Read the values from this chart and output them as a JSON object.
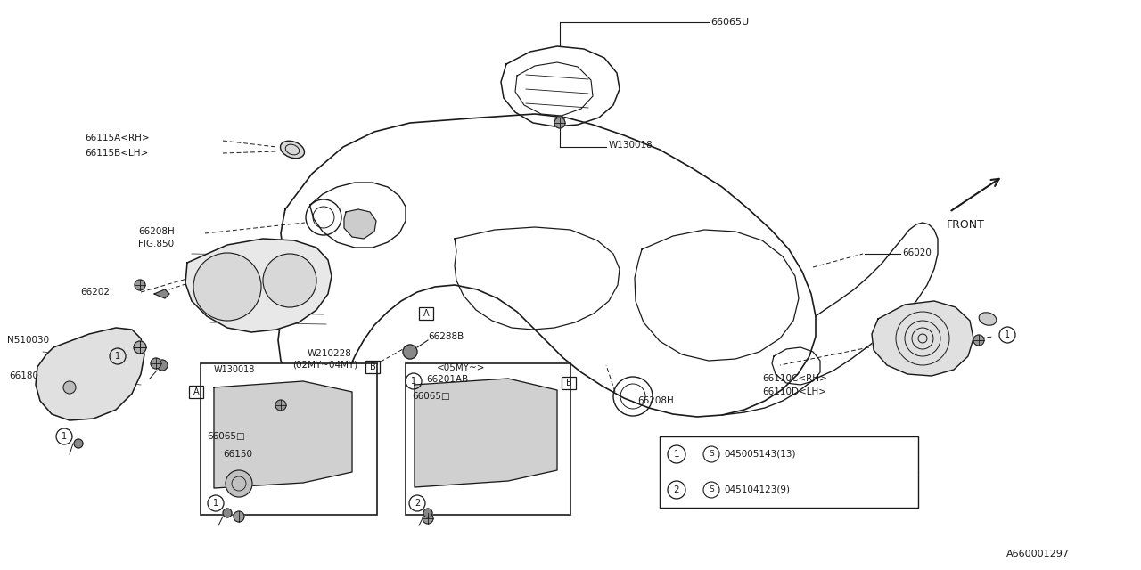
{
  "bg_color": "#ffffff",
  "line_color": "#1a1a1a",
  "diagram_code": "A660001297",
  "fig_w": 12.8,
  "fig_h": 6.4,
  "dpi": 100,
  "labels": {
    "66115A_RH": "66115A<RH>",
    "66115B_LH": "66115B<LH>",
    "66208H_top": "66208H",
    "FIG850": "FIG.850",
    "66202": "66202",
    "N510030": "N510030",
    "66180": "66180",
    "66065D_left": "66065□",
    "66150": "66150",
    "W130018_left": "W130018",
    "W210228": "W210228",
    "02MY_04MY": "(02MY~04MY)",
    "66288B": "66288B",
    "05MY": "<05MY~>",
    "66065D_right": "66065□",
    "66201AB": "66201AB",
    "66208H_bot": "66208H",
    "66065U": "66065U",
    "W130018_top": "W130018",
    "66020": "66020",
    "66110C_RH": "66110C<RH>",
    "66110D_LH": "66110D<LH>",
    "FRONT": "FRONT",
    "part1_num": "045005143(13)",
    "part2_num": "045104123(9)"
  }
}
